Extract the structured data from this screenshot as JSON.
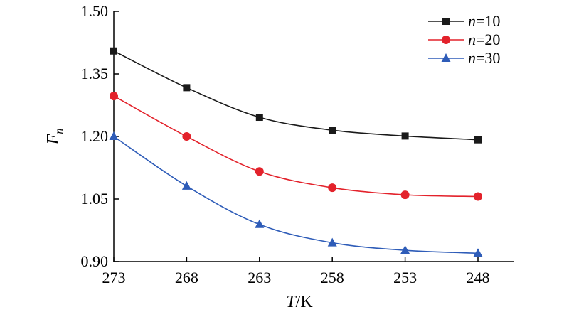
{
  "chart_data": {
    "type": "line",
    "x": [
      "273",
      "268",
      "263",
      "258",
      "253",
      "248"
    ],
    "xlabel": {
      "italic": "T",
      "rest": "/K"
    },
    "ylabel": {
      "main": "F",
      "sub": "n"
    },
    "ylim": [
      0.9,
      1.5
    ],
    "yticks": [
      "0.90",
      "1.05",
      "1.20",
      "1.35",
      "1.50"
    ],
    "grid": false,
    "legend_position": "top-right",
    "series": [
      {
        "name": "n=10",
        "name_italic": "n",
        "name_rest": "=10",
        "marker": "square",
        "color": "#1a1a1a",
        "values": [
          1.405,
          1.317,
          1.246,
          1.215,
          1.201,
          1.192
        ]
      },
      {
        "name": "n=20",
        "name_italic": "n",
        "name_rest": "=20",
        "marker": "circle",
        "color": "#e3222b",
        "values": [
          1.297,
          1.2,
          1.116,
          1.077,
          1.06,
          1.056
        ]
      },
      {
        "name": "n=30",
        "name_italic": "n",
        "name_rest": "=30",
        "marker": "triangle",
        "color": "#2e5cb8",
        "values": [
          1.2,
          1.081,
          0.989,
          0.945,
          0.927,
          0.92
        ]
      }
    ]
  }
}
